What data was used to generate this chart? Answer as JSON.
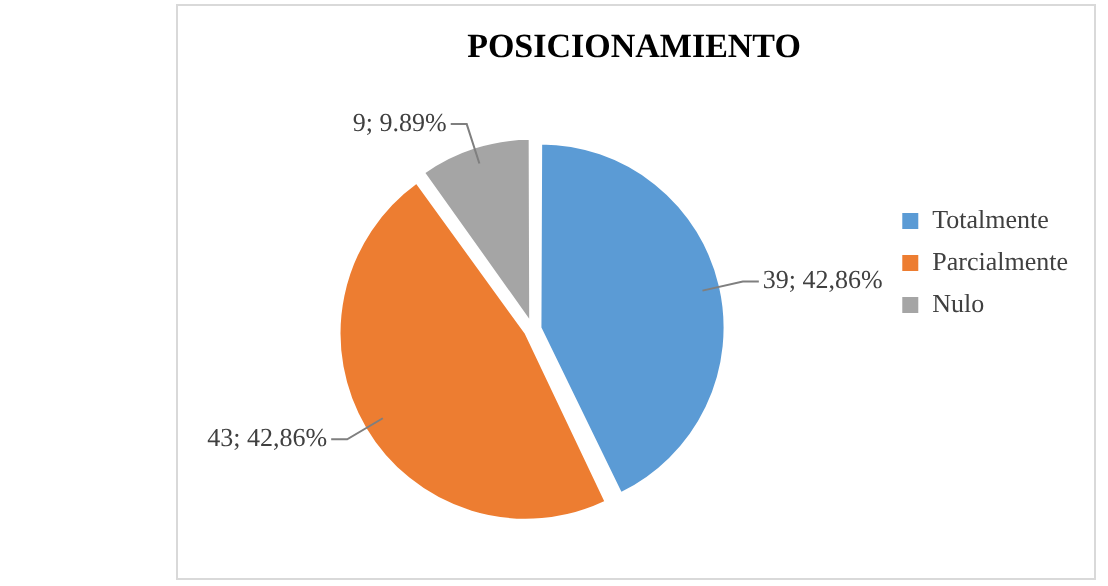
{
  "chart_data": {
    "type": "pie",
    "title": "POSICIONAMIENTO",
    "categories": [
      "Totalmente",
      "Parcialmente",
      "Nulo"
    ],
    "values": [
      39,
      43,
      9
    ],
    "colors": [
      "#5b9bd5",
      "#ed7d31",
      "#a5a5a5"
    ],
    "value_labels": [
      "39; 42,86%",
      "43; 42,86%",
      "9; 9.89%"
    ],
    "legend": "right"
  }
}
